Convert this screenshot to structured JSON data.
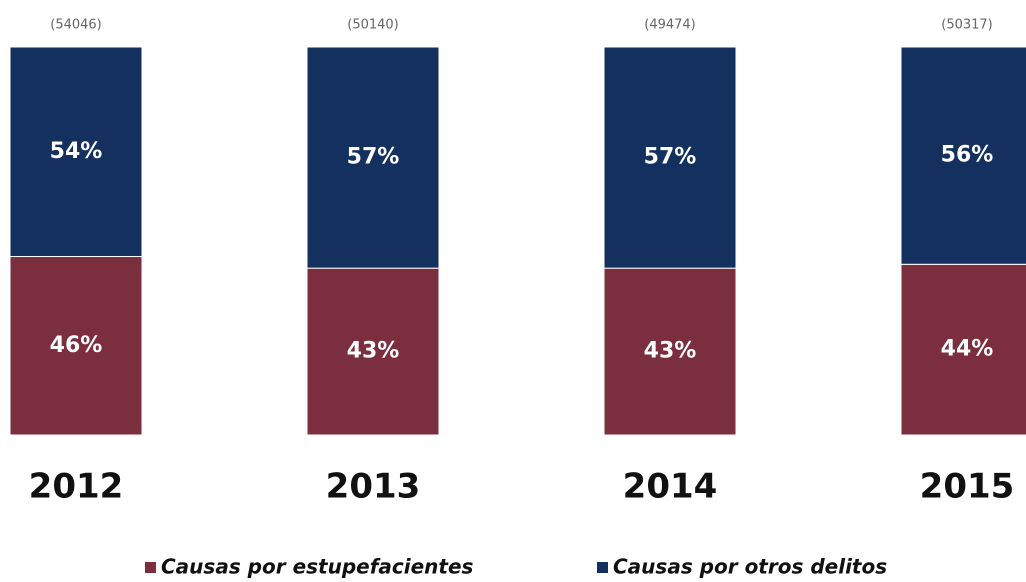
{
  "chart_data": {
    "type": "stacked_bar",
    "categories": [
      "2012",
      "2013",
      "2014",
      "2015"
    ],
    "annotations": [
      "(54046)",
      "(50140)",
      "(49474)",
      "(50317)"
    ],
    "series": [
      {
        "name": "Causas por estupefacientes",
        "color": "#7a2e3e",
        "values": [
          46,
          43,
          43,
          44
        ],
        "value_labels": [
          "46%",
          "43%",
          "43%",
          "44%"
        ]
      },
      {
        "name": "Causas por otros delitos",
        "color": "#14305e",
        "values": [
          54,
          57,
          57,
          56
        ],
        "value_labels": [
          "54%",
          "57%",
          "57%",
          "56%"
        ]
      }
    ],
    "ylim": [
      0,
      100
    ]
  }
}
